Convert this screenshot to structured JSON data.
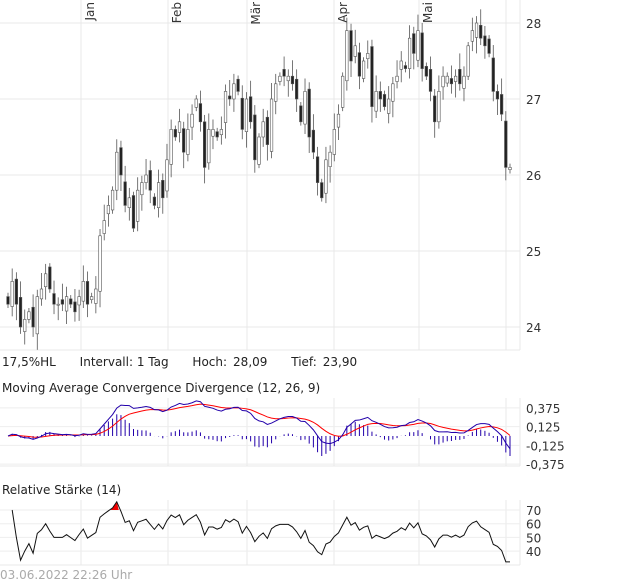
{
  "chart_data": {
    "type": "candlestick",
    "months": [
      "Jan",
      "Feb",
      "Mär",
      "Apr",
      "Mai"
    ],
    "price_ticks": [
      "28",
      "27",
      "26",
      "25",
      "24"
    ],
    "price_tick_values": [
      28,
      27,
      26,
      25,
      24
    ],
    "closes": [
      24.3,
      24.6,
      24.3,
      24.0,
      24.1,
      24.2,
      24.0,
      24.4,
      24.5,
      24.7,
      24.5,
      24.3,
      24.3,
      24.3,
      24.4,
      24.3,
      24.2,
      24.4,
      24.6,
      24.3,
      24.4,
      24.5,
      25.2,
      25.4,
      25.6,
      25.8,
      26.3,
      26.0,
      25.6,
      25.7,
      25.3,
      25.8,
      25.9,
      26.0,
      25.8,
      25.6,
      25.9,
      25.7,
      26.2,
      26.6,
      26.5,
      26.7,
      26.3,
      26.6,
      26.8,
      27.0,
      26.7,
      26.1,
      26.6,
      26.6,
      26.5,
      26.6,
      27.1,
      27.0,
      27.2,
      27.1,
      26.6,
      27.0,
      26.7,
      26.2,
      26.5,
      26.7,
      26.4,
      27.0,
      27.2,
      27.3,
      27.3,
      27.3,
      27.2,
      27.0,
      26.7,
      27.1,
      26.5,
      26.3,
      25.9,
      25.7,
      26.2,
      26.3,
      26.6,
      26.8,
      27.3,
      27.9,
      27.5,
      27.7,
      27.3,
      27.5,
      27.6,
      26.9,
      27.1,
      27.0,
      26.9,
      27.0,
      27.2,
      27.3,
      27.5,
      27.4,
      27.8,
      27.6,
      27.9,
      27.4,
      27.3,
      27.1,
      26.7,
      27.1,
      27.3,
      27.3,
      27.2,
      27.3,
      27.2,
      27.3,
      27.7,
      27.9,
      28.0,
      27.8,
      27.7,
      27.6,
      27.1,
      27.0,
      26.8,
      26.1,
      26.1
    ],
    "high": 28.09,
    "low": 23.9,
    "macd": {
      "title": "Moving Average Convergence Divergence (12, 26, 9)",
      "ticks": [
        "0,375",
        "0,125",
        "-0,125",
        "-0,375"
      ],
      "tick_values": [
        0.375,
        0.125,
        -0.125,
        -0.375
      ],
      "macd_color": "#2200aa",
      "signal_color": "#ff0000"
    },
    "rsi": {
      "title": "Relative Stärke (14)",
      "ticks": [
        "70",
        "60",
        "50",
        "40"
      ],
      "tick_values": [
        70,
        60,
        50,
        40
      ],
      "overbought_color": "#ee0000"
    }
  },
  "info": {
    "scale": "17,5%HL",
    "interval": "Intervall: 1 Tag",
    "high_label": "Hoch:",
    "high_value": "28,09",
    "low_label": "Tief:",
    "low_value": "23,90"
  },
  "timestamp": "03.06.2022 22:26 Uhr"
}
